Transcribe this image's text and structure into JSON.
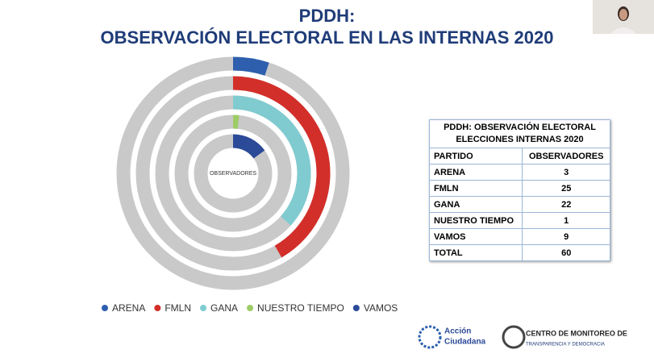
{
  "title": [
    "PDDH:",
    "OBSERVACIÓN ELECTORAL EN LAS INTERNAS 2020"
  ],
  "chart_data": {
    "type": "radial-bar",
    "center_label": "OBSERVADORES",
    "categories": [
      "ARENA",
      "FMLN",
      "GANA",
      "NUESTRO TIEMPO",
      "VAMOS"
    ],
    "values": [
      3,
      25,
      22,
      1,
      9
    ],
    "colors": [
      "#2e5fae",
      "#d32f2a",
      "#7fcbd0",
      "#9dcc66",
      "#2b4a98"
    ],
    "track_color": "#c9c9c9"
  },
  "table": {
    "title": [
      "PDDH: OBSERVACIÓN ELECTORAL",
      "ELECCIONES INTERNAS 2020"
    ],
    "header": [
      "PARTIDO",
      "OBSERVADORES"
    ],
    "rows": [
      [
        "ARENA",
        "3"
      ],
      [
        "FMLN",
        "25"
      ],
      [
        "GANA",
        "22"
      ],
      [
        "NUESTRO TIEMPO",
        "1"
      ],
      [
        "VAMOS",
        "9"
      ],
      [
        "TOTAL",
        "60"
      ]
    ]
  },
  "logos": {
    "left": [
      "Acción",
      "Ciudadana"
    ],
    "right": [
      "CENTRO DE MONITOREO DE",
      "TRANSPARENCIA Y DEMOCRACIA"
    ]
  }
}
